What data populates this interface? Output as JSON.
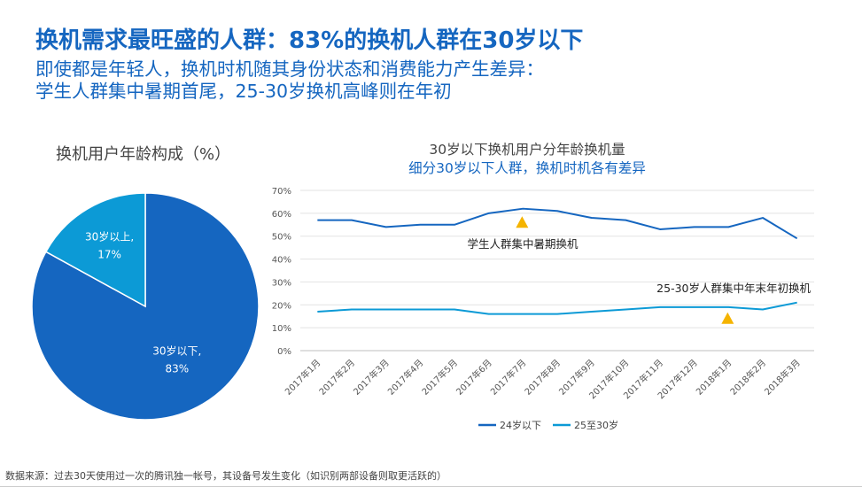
{
  "header": {
    "title": "换机需求最旺盛的人群：83%的换机人群在30岁以下",
    "subtitle_line1": "即使都是年轻人，换机时机随其身份状态和消费能力产生差异：",
    "subtitle_line2": "学生人群集中暑期首尾，25-30岁换机高峰则在年初"
  },
  "source_note": "数据来源：过去30天使用过一次的腾讯独一帐号，其设备号发生变化（如识别两部设备则取更活跃的）",
  "chart_data": [
    {
      "type": "pie",
      "title": "换机用户年龄构成（%）",
      "slices": [
        {
          "label": "30岁以下,",
          "value": 83,
          "value_label": "83%",
          "color": "#1566c0"
        },
        {
          "label": "30岁以上,",
          "value": 17,
          "value_label": "17%",
          "color": "#0c9ad6"
        }
      ]
    },
    {
      "type": "line",
      "title": "30岁以下换机用户分年龄换机量",
      "subtitle": "细分30岁以下人群，换机时机各有差异",
      "categories": [
        "2017年1月",
        "2017年2月",
        "2017年3月",
        "2017年4月",
        "2017年5月",
        "2017年6月",
        "2017年7月",
        "2017年8月",
        "2017年9月",
        "2017年10月",
        "2017年11月",
        "2017年12月",
        "2018年1月",
        "2018年2月",
        "2018年3月"
      ],
      "yticks": [
        "0%",
        "10%",
        "20%",
        "30%",
        "40%",
        "50%",
        "60%",
        "70%"
      ],
      "ylim": [
        0,
        70
      ],
      "grid": true,
      "legend_position": "bottom",
      "series": [
        {
          "name": "24岁以下",
          "color": "#1566c0",
          "values": [
            57,
            57,
            54,
            55,
            55,
            60,
            62,
            61,
            58,
            57,
            53,
            54,
            54,
            58,
            49
          ]
        },
        {
          "name": "25至30岁",
          "color": "#0c9ad6",
          "values": [
            17,
            18,
            18,
            18,
            18,
            16,
            16,
            16,
            17,
            18,
            19,
            19,
            19,
            18,
            21
          ]
        }
      ],
      "annotations": [
        {
          "text": "学生人群集中暑期换机",
          "marker_index": 6,
          "marker_value": 56,
          "color": "#f5b400"
        },
        {
          "text": "25-30岁人群集中年末年初换机",
          "marker_index": 12,
          "marker_value": 14,
          "color": "#f5b400"
        }
      ]
    }
  ]
}
